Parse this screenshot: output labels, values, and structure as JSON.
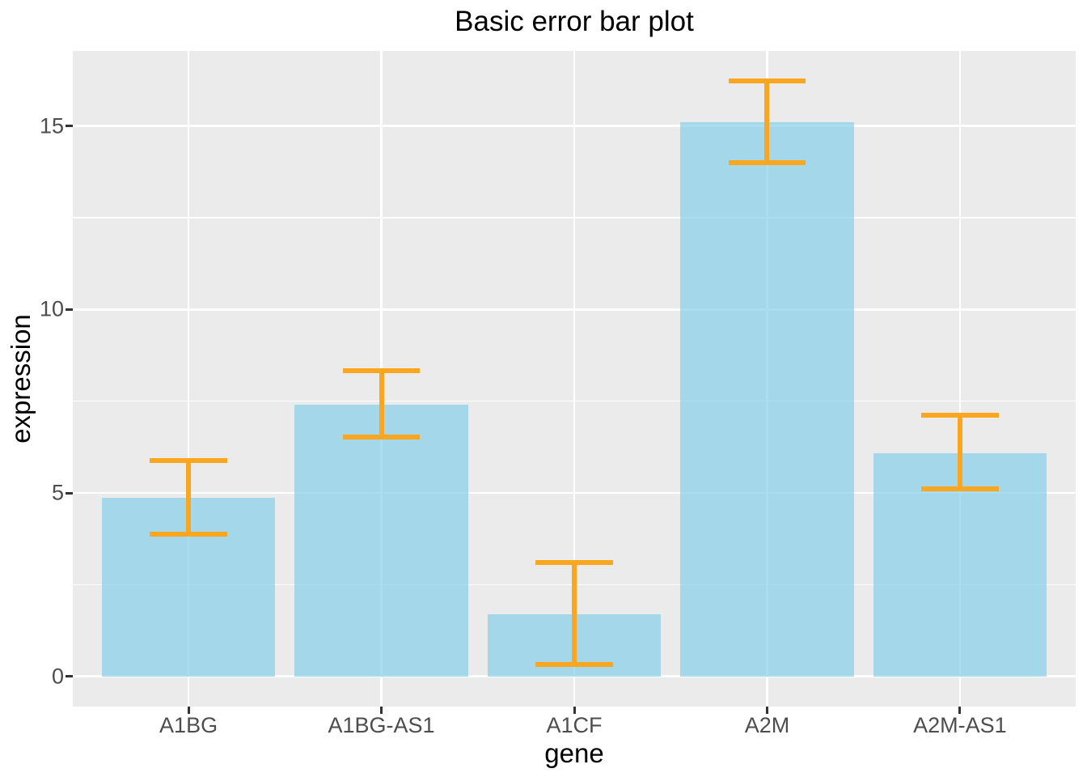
{
  "title": "Basic error bar plot",
  "chart_data": {
    "type": "bar",
    "title": "Basic error bar plot",
    "xlabel": "gene",
    "ylabel": "expression",
    "categories": [
      "A1BG",
      "A1BG-AS1",
      "A1CF",
      "A2M",
      "A2M-AS1"
    ],
    "values": [
      4.87,
      7.41,
      1.7,
      15.1,
      6.08
    ],
    "error_low": [
      3.88,
      6.52,
      0.33,
      13.99,
      5.11
    ],
    "error_high": [
      5.89,
      8.33,
      3.11,
      16.22,
      7.12
    ],
    "yticks": [
      0,
      5,
      10,
      15
    ],
    "ytick_labels": [
      "0",
      "5",
      "10",
      "15"
    ],
    "minor_yticks": [
      2.5,
      7.5,
      12.5
    ],
    "ylim": [
      -0.82,
      17.04
    ],
    "bar_width_units": 0.9,
    "cap_width_units": 0.4,
    "grid": "major-and-minor-horizontal, major-vertical",
    "legend": "none",
    "colors": {
      "panel_bg": "#EBEBEB",
      "gridline": "#FFFFFF",
      "bar_fill": "rgba(135,206,235,0.7)",
      "bar_fill_flat_hex": "#A6D7E8",
      "error_bar": "#FAA71F",
      "axis_text": "#4D4D4D",
      "tick_mark": "#333333",
      "title_color": "#000000",
      "page_bg": "#FFFFFF"
    }
  }
}
